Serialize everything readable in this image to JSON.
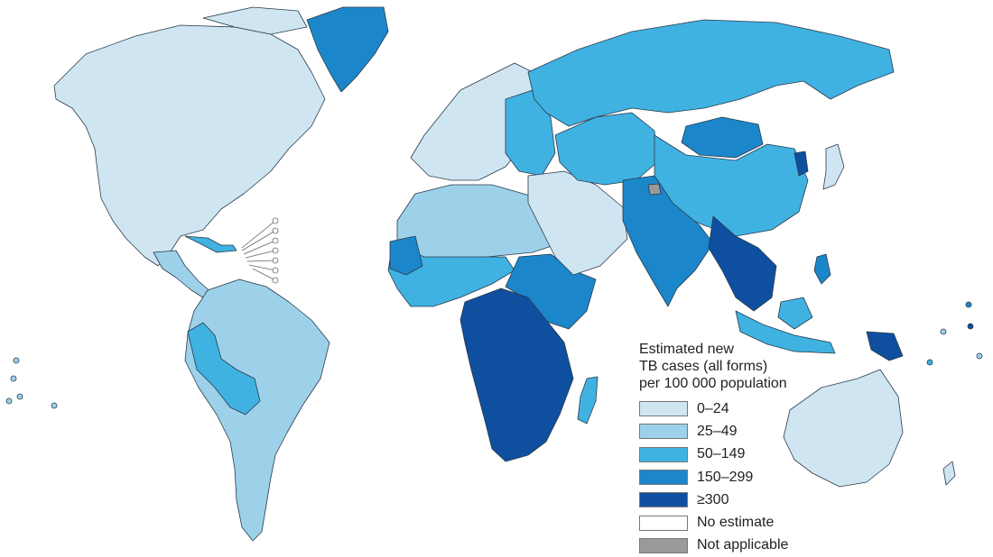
{
  "legend": {
    "title_lines": [
      "Estimated new",
      "TB cases (all forms)",
      "per 100 000 population"
    ],
    "items": [
      {
        "label": "0–24",
        "color": "#cfe6f2"
      },
      {
        "label": "25–49",
        "color": "#9dd1ea"
      },
      {
        "label": "50–149",
        "color": "#3fb2e2"
      },
      {
        "label": "150–299",
        "color": "#1c86ca"
      },
      {
        "label": "≥300",
        "color": "#0f4fa0"
      },
      {
        "label": "No estimate",
        "color": "#ffffff"
      },
      {
        "label": "Not applicable",
        "color": "#9a9a9a"
      }
    ]
  },
  "colors": {
    "border": "#2a3a4a",
    "background": "#ffffff"
  }
}
